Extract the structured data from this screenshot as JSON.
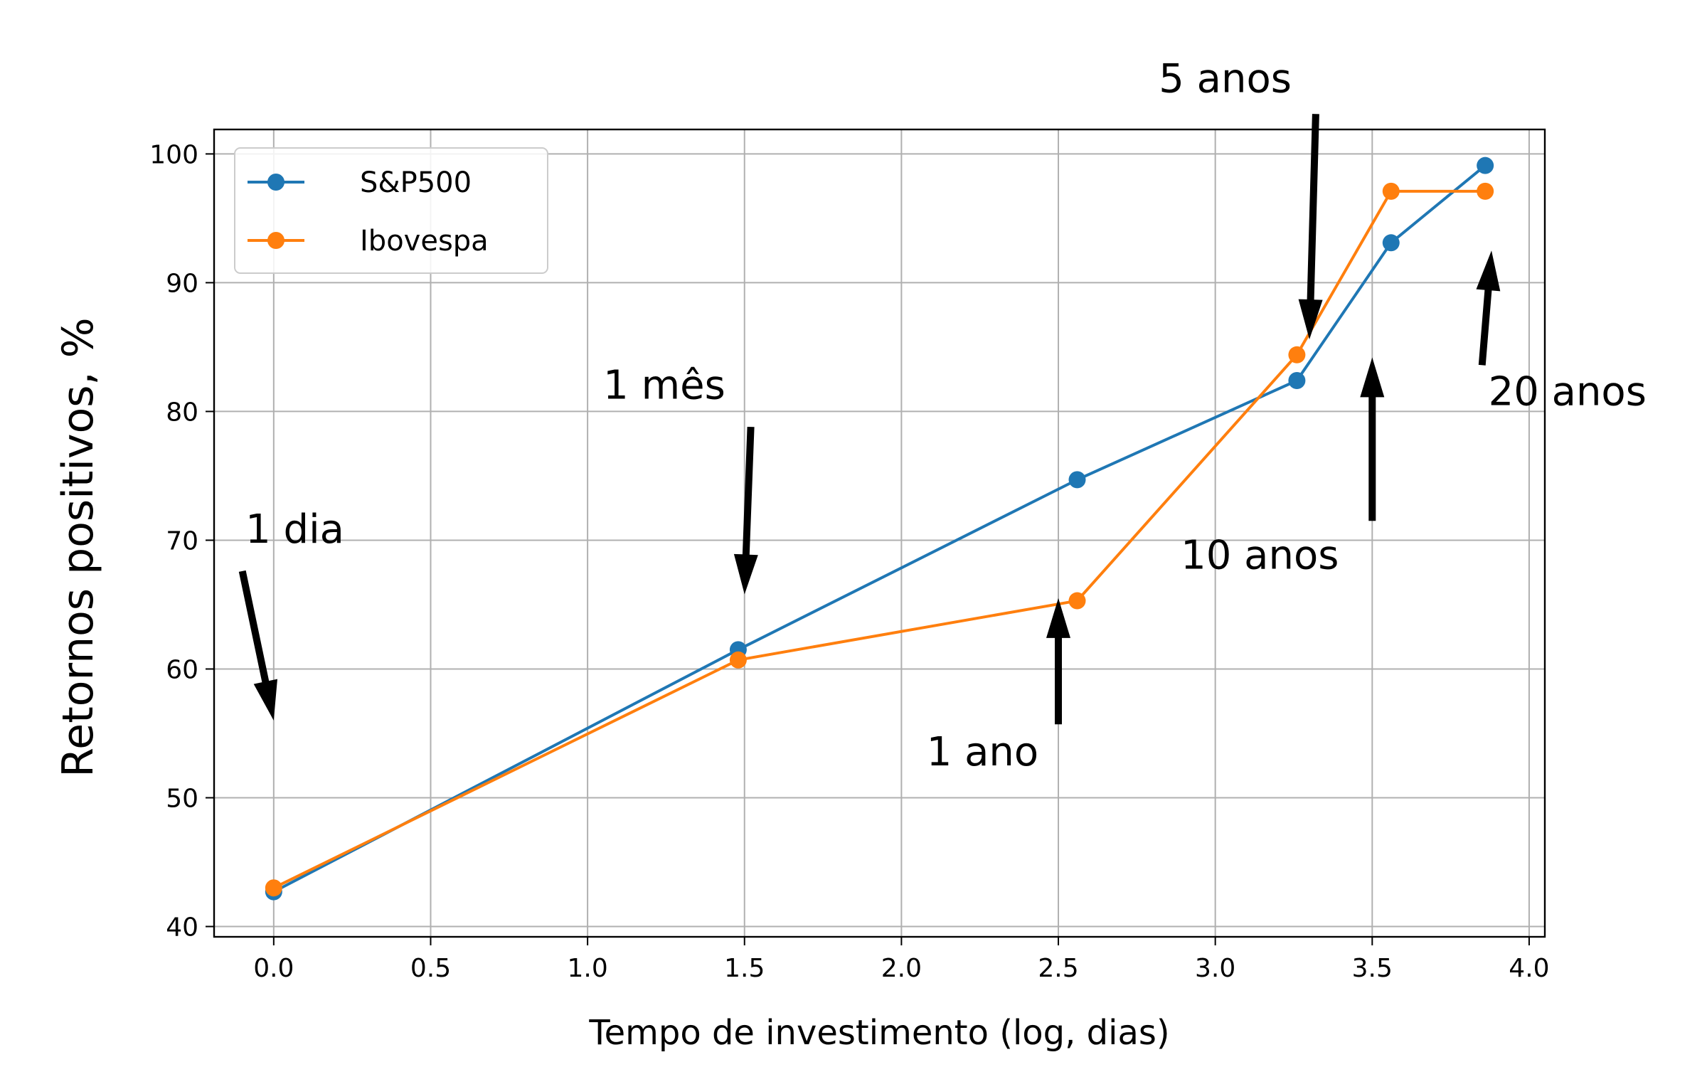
{
  "chart_data": {
    "type": "line",
    "title": "",
    "xlabel": "Tempo de investimento (log, dias)",
    "ylabel": "Retornos positivos, %",
    "xlim": [
      -0.19,
      4.05
    ],
    "ylim": [
      39.2,
      101.9
    ],
    "xticks": [
      0.0,
      0.5,
      1.0,
      1.5,
      2.0,
      2.5,
      3.0,
      3.5,
      4.0
    ],
    "xtick_labels": [
      "0.0",
      "0.5",
      "1.0",
      "1.5",
      "2.0",
      "2.5",
      "3.0",
      "3.5",
      "4.0"
    ],
    "yticks": [
      40,
      50,
      60,
      70,
      80,
      90,
      100
    ],
    "ytick_labels": [
      "40",
      "50",
      "60",
      "70",
      "80",
      "90",
      "100"
    ],
    "grid": true,
    "legend_position": "upper-left",
    "series": [
      {
        "name": "S&P500",
        "color": "#1f77b4",
        "x": [
          0.0,
          1.48,
          2.56,
          3.26,
          3.56,
          3.86
        ],
        "y": [
          42.7,
          61.5,
          74.7,
          82.4,
          93.1,
          99.1
        ]
      },
      {
        "name": "Ibovespa",
        "color": "#ff7f0e",
        "x": [
          0.0,
          1.48,
          2.56,
          3.26,
          3.56,
          3.86
        ],
        "y": [
          43.0,
          60.7,
          65.3,
          84.4,
          97.1,
          97.1
        ]
      }
    ],
    "annotations": [
      {
        "text": "1 dia",
        "text_x": -0.09,
        "text_y": 69.8,
        "arrow_from": [
          -0.1,
          67.6
        ],
        "arrow_to": [
          0.0,
          56.0
        ]
      },
      {
        "text": "1 mês",
        "text_x": 1.05,
        "text_y": 81.0,
        "arrow_from": [
          1.52,
          78.8
        ],
        "arrow_to": [
          1.5,
          65.8
        ]
      },
      {
        "text": "1 ano",
        "text_x": 2.08,
        "text_y": 52.5,
        "arrow_from": [
          2.5,
          55.7
        ],
        "arrow_to": [
          2.5,
          65.5
        ]
      },
      {
        "text": "5 anos",
        "text_x": 2.82,
        "text_y": 104.8,
        "arrow_from": [
          3.32,
          103.1
        ],
        "arrow_to": [
          3.3,
          85.6
        ]
      },
      {
        "text": "10 anos",
        "text_x": 2.89,
        "text_y": 67.8,
        "arrow_from": [
          3.5,
          71.5
        ],
        "arrow_to": [
          3.5,
          84.2
        ]
      },
      {
        "text": "20 anos",
        "text_x": 3.87,
        "text_y": 80.5,
        "arrow_from": [
          3.85,
          83.6
        ],
        "arrow_to": [
          3.88,
          92.5
        ]
      }
    ]
  }
}
